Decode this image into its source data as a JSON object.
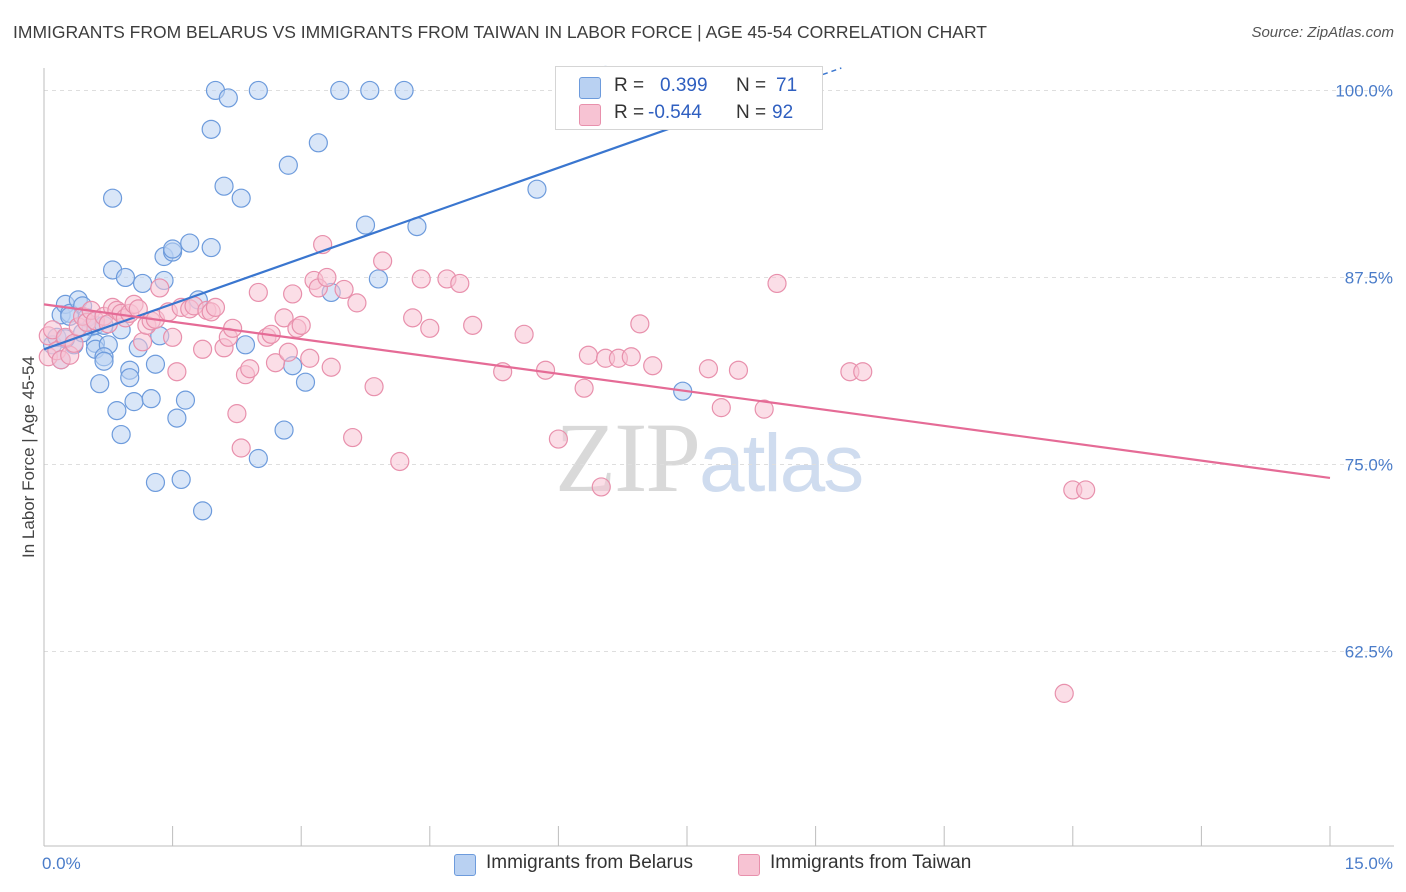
{
  "title": "IMMIGRANTS FROM BELARUS VS IMMIGRANTS FROM TAIWAN IN LABOR FORCE | AGE 45-54 CORRELATION CHART",
  "source": "Source: ZipAtlas.com",
  "watermark": {
    "zip": "ZIP",
    "atlas": "atlas"
  },
  "legend": {
    "rows": [
      {
        "r_label": "R =",
        "r_value": "0.399",
        "n_label": "N =",
        "n_value": "71"
      },
      {
        "r_label": "R =",
        "r_value": "-0.544",
        "n_label": "N =",
        "n_value": "92"
      }
    ]
  },
  "bottom_legend": [
    "Immigrants from Belarus",
    "Immigrants from Taiwan"
  ],
  "colors": {
    "belarus_fill": "#b9d1f2",
    "belarus_stroke": "#6d9bdc",
    "belarus_line": "#3a76cf",
    "taiwan_fill": "#f7c3d3",
    "taiwan_stroke": "#e890ac",
    "taiwan_line": "#e56b96",
    "tick_text": "#4a7cc9",
    "grid": "#dedede"
  },
  "chart_data": {
    "type": "scatter",
    "title": "IMMIGRANTS FROM BELARUS VS IMMIGRANTS FROM TAIWAN IN LABOR FORCE | AGE 45-54 CORRELATION CHART",
    "xlabel": "",
    "ylabel": "In Labor Force | Age 45-54",
    "xlim": [
      0,
      15
    ],
    "ylim": [
      49.5,
      101.5
    ],
    "x_tick_labels": [
      "0.0%",
      "15.0%"
    ],
    "y_ticks": [
      62.5,
      75.0,
      87.5,
      100.0
    ],
    "y_tick_labels": [
      "62.5%",
      "75.0%",
      "87.5%",
      "100.0%"
    ],
    "series": [
      {
        "name": "Immigrants from Belarus",
        "R": 0.399,
        "N": 71,
        "trendline": {
          "x": [
            0.0,
            9.3
          ],
          "y": [
            82.7,
            101.5
          ],
          "dashed_from_x": 7.7
        },
        "points": [
          [
            0.1,
            83.0
          ],
          [
            0.15,
            83.5
          ],
          [
            0.2,
            85.0
          ],
          [
            0.2,
            82.0
          ],
          [
            0.25,
            85.7
          ],
          [
            0.3,
            85.1
          ],
          [
            0.35,
            83.0
          ],
          [
            0.4,
            86.0
          ],
          [
            0.45,
            85.6
          ],
          [
            0.5,
            84.8
          ],
          [
            0.55,
            84.2
          ],
          [
            0.6,
            83.1
          ],
          [
            0.6,
            82.7
          ],
          [
            0.65,
            80.4
          ],
          [
            0.6,
            84.3
          ],
          [
            0.7,
            84.3
          ],
          [
            0.75,
            83.0
          ],
          [
            0.7,
            82.2
          ],
          [
            0.7,
            81.9
          ],
          [
            0.8,
            88.0
          ],
          [
            0.8,
            92.8
          ],
          [
            0.85,
            78.6
          ],
          [
            0.9,
            77.0
          ],
          [
            0.9,
            84.0
          ],
          [
            0.95,
            87.5
          ],
          [
            1.0,
            81.3
          ],
          [
            1.0,
            80.8
          ],
          [
            1.05,
            79.2
          ],
          [
            1.1,
            82.8
          ],
          [
            1.15,
            87.1
          ],
          [
            1.25,
            79.4
          ],
          [
            1.3,
            81.7
          ],
          [
            1.3,
            73.8
          ],
          [
            1.35,
            83.6
          ],
          [
            1.4,
            87.3
          ],
          [
            1.4,
            88.9
          ],
          [
            1.5,
            89.2
          ],
          [
            1.5,
            89.4
          ],
          [
            1.55,
            78.1
          ],
          [
            1.6,
            74.0
          ],
          [
            1.65,
            79.3
          ],
          [
            1.7,
            89.8
          ],
          [
            1.8,
            86.0
          ],
          [
            1.85,
            71.9
          ],
          [
            1.95,
            89.5
          ],
          [
            1.95,
            97.4
          ],
          [
            2.0,
            100.0
          ],
          [
            2.15,
            99.5
          ],
          [
            2.1,
            93.6
          ],
          [
            2.3,
            92.8
          ],
          [
            2.35,
            83.0
          ],
          [
            2.5,
            100.0
          ],
          [
            2.5,
            75.4
          ],
          [
            2.8,
            77.3
          ],
          [
            2.85,
            95.0
          ],
          [
            2.9,
            81.6
          ],
          [
            3.05,
            80.5
          ],
          [
            3.2,
            96.5
          ],
          [
            3.35,
            86.5
          ],
          [
            3.45,
            100.0
          ],
          [
            3.75,
            91.0
          ],
          [
            3.8,
            100.0
          ],
          [
            3.9,
            87.4
          ],
          [
            4.2,
            100.0
          ],
          [
            4.35,
            90.9
          ],
          [
            5.75,
            93.4
          ],
          [
            7.45,
            79.9
          ],
          [
            6.55,
            101.0
          ],
          [
            0.45,
            83.8
          ],
          [
            0.3,
            84.9
          ],
          [
            0.25,
            83.4
          ]
        ]
      },
      {
        "name": "Immigrants from Taiwan",
        "R": -0.544,
        "N": 92,
        "trendline": {
          "x": [
            0.0,
            15.0
          ],
          "y": [
            85.7,
            74.1
          ]
        },
        "points": [
          [
            0.05,
            82.2
          ],
          [
            0.05,
            83.6
          ],
          [
            0.1,
            84.0
          ],
          [
            0.15,
            82.6
          ],
          [
            0.2,
            82.0
          ],
          [
            0.25,
            83.5
          ],
          [
            0.3,
            82.3
          ],
          [
            0.35,
            83.1
          ],
          [
            0.4,
            84.2
          ],
          [
            0.45,
            84.9
          ],
          [
            0.5,
            84.5
          ],
          [
            0.55,
            85.3
          ],
          [
            0.6,
            84.6
          ],
          [
            0.7,
            84.9
          ],
          [
            0.75,
            84.4
          ],
          [
            0.8,
            85.5
          ],
          [
            0.85,
            85.3
          ],
          [
            0.9,
            85.1
          ],
          [
            0.95,
            84.8
          ],
          [
            1.0,
            85.1
          ],
          [
            1.05,
            85.7
          ],
          [
            1.1,
            85.4
          ],
          [
            1.15,
            83.2
          ],
          [
            1.2,
            84.3
          ],
          [
            1.25,
            84.6
          ],
          [
            1.3,
            84.7
          ],
          [
            1.35,
            86.8
          ],
          [
            1.45,
            85.2
          ],
          [
            1.5,
            83.5
          ],
          [
            1.55,
            81.2
          ],
          [
            1.6,
            85.5
          ],
          [
            1.7,
            85.4
          ],
          [
            1.75,
            85.6
          ],
          [
            1.85,
            82.7
          ],
          [
            1.9,
            85.3
          ],
          [
            1.95,
            85.2
          ],
          [
            2.0,
            85.5
          ],
          [
            2.1,
            82.8
          ],
          [
            2.15,
            83.5
          ],
          [
            2.2,
            84.1
          ],
          [
            2.25,
            78.4
          ],
          [
            2.3,
            76.1
          ],
          [
            2.35,
            81.0
          ],
          [
            2.4,
            81.4
          ],
          [
            2.5,
            86.5
          ],
          [
            2.6,
            83.5
          ],
          [
            2.65,
            83.7
          ],
          [
            2.7,
            81.8
          ],
          [
            2.8,
            84.8
          ],
          [
            2.85,
            82.5
          ],
          [
            2.9,
            86.4
          ],
          [
            2.95,
            84.1
          ],
          [
            3.0,
            84.3
          ],
          [
            3.1,
            82.1
          ],
          [
            3.15,
            87.3
          ],
          [
            3.2,
            86.8
          ],
          [
            3.25,
            89.7
          ],
          [
            3.3,
            87.5
          ],
          [
            3.35,
            81.5
          ],
          [
            3.5,
            86.7
          ],
          [
            3.6,
            76.8
          ],
          [
            3.65,
            85.8
          ],
          [
            3.85,
            80.2
          ],
          [
            3.95,
            88.6
          ],
          [
            4.15,
            75.2
          ],
          [
            4.3,
            84.8
          ],
          [
            4.4,
            87.4
          ],
          [
            4.5,
            84.1
          ],
          [
            4.7,
            87.4
          ],
          [
            4.85,
            87.1
          ],
          [
            5.0,
            84.3
          ],
          [
            5.35,
            81.2
          ],
          [
            5.6,
            83.7
          ],
          [
            5.85,
            81.3
          ],
          [
            6.0,
            76.7
          ],
          [
            6.3,
            80.1
          ],
          [
            6.35,
            82.3
          ],
          [
            6.5,
            73.5
          ],
          [
            6.55,
            82.1
          ],
          [
            6.7,
            82.1
          ],
          [
            6.85,
            82.2
          ],
          [
            6.95,
            84.4
          ],
          [
            7.1,
            81.6
          ],
          [
            7.75,
            81.4
          ],
          [
            7.9,
            78.8
          ],
          [
            8.1,
            81.3
          ],
          [
            8.4,
            78.7
          ],
          [
            8.55,
            87.1
          ],
          [
            9.4,
            81.2
          ],
          [
            9.55,
            81.2
          ],
          [
            12.0,
            73.3
          ],
          [
            12.15,
            73.3
          ],
          [
            11.9,
            59.7
          ]
        ]
      }
    ]
  }
}
